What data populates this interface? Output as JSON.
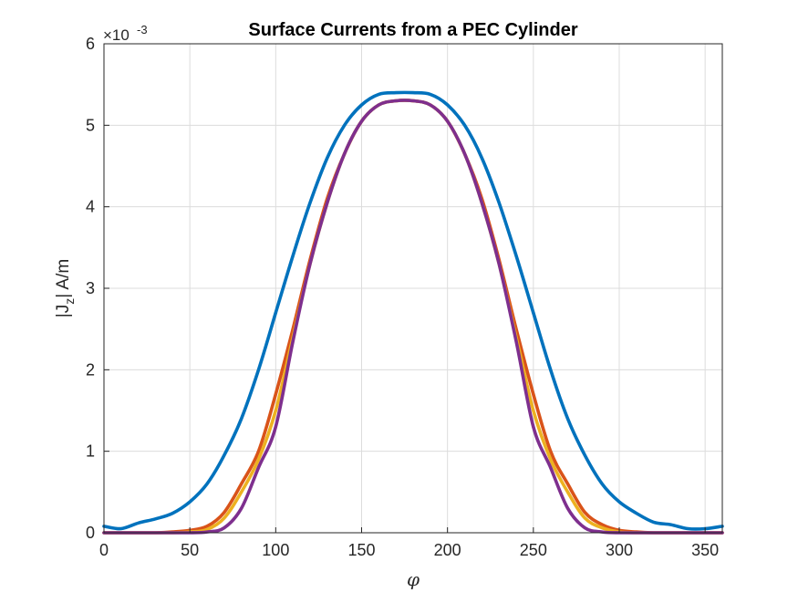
{
  "chart_data": {
    "type": "line",
    "title": "Surface Currents from a PEC Cylinder",
    "xlabel": "φ",
    "ylabel": "|J",
    "ylabel_sub": "z",
    "ylabel_suffix": "| A/m",
    "y_exponent_prefix": "×10",
    "y_exponent": "-3",
    "xlim": [
      0,
      360
    ],
    "ylim": [
      0,
      6
    ],
    "xticks": [
      0,
      50,
      100,
      150,
      200,
      250,
      300,
      350
    ],
    "yticks": [
      0,
      1,
      2,
      3,
      4,
      5,
      6
    ],
    "grid": true,
    "x": [
      0,
      10,
      20,
      30,
      40,
      50,
      60,
      70,
      80,
      90,
      100,
      110,
      120,
      130,
      140,
      150,
      160,
      170,
      180,
      190,
      200,
      210,
      220,
      230,
      240,
      250,
      260,
      270,
      280,
      290,
      300,
      310,
      320,
      330,
      340,
      350,
      360
    ],
    "series": [
      {
        "color": "#0072BD",
        "values": [
          0.08,
          0.05,
          0.12,
          0.17,
          0.24,
          0.38,
          0.6,
          0.95,
          1.4,
          2.0,
          2.7,
          3.4,
          4.05,
          4.6,
          5.0,
          5.25,
          5.38,
          5.4,
          5.4,
          5.38,
          5.25,
          5.0,
          4.6,
          4.05,
          3.4,
          2.7,
          2.0,
          1.4,
          0.95,
          0.6,
          0.38,
          0.24,
          0.13,
          0.1,
          0.05,
          0.05,
          0.08
        ]
      },
      {
        "color": "#D95319",
        "values": [
          0.0,
          0.0,
          0.0,
          0.0,
          0.01,
          0.03,
          0.08,
          0.25,
          0.6,
          1.0,
          1.7,
          2.5,
          3.35,
          4.1,
          4.65,
          5.05,
          5.25,
          5.3,
          5.3,
          5.25,
          5.05,
          4.65,
          4.1,
          3.35,
          2.5,
          1.7,
          1.0,
          0.6,
          0.25,
          0.1,
          0.03,
          0.01,
          0.0,
          0.0,
          0.0,
          0.0,
          0.0
        ]
      },
      {
        "color": "#EDB120",
        "values": [
          0.0,
          0.0,
          0.0,
          0.0,
          0.0,
          0.01,
          0.04,
          0.18,
          0.5,
          0.9,
          1.5,
          2.4,
          3.3,
          4.05,
          4.65,
          5.05,
          5.25,
          5.3,
          5.3,
          5.25,
          5.05,
          4.65,
          4.05,
          3.3,
          2.4,
          1.5,
          0.9,
          0.5,
          0.18,
          0.06,
          0.01,
          0.0,
          0.0,
          0.0,
          0.0,
          0.0,
          0.0
        ]
      },
      {
        "color": "#7E2F8E",
        "values": [
          0.0,
          0.0,
          0.0,
          0.0,
          0.0,
          0.0,
          0.01,
          0.06,
          0.3,
          0.8,
          1.3,
          2.35,
          3.3,
          4.05,
          4.65,
          5.05,
          5.25,
          5.3,
          5.3,
          5.25,
          5.05,
          4.65,
          4.05,
          3.3,
          2.35,
          1.3,
          0.8,
          0.3,
          0.06,
          0.01,
          0.0,
          0.0,
          0.0,
          0.0,
          0.0,
          0.0,
          0.0
        ]
      }
    ]
  }
}
